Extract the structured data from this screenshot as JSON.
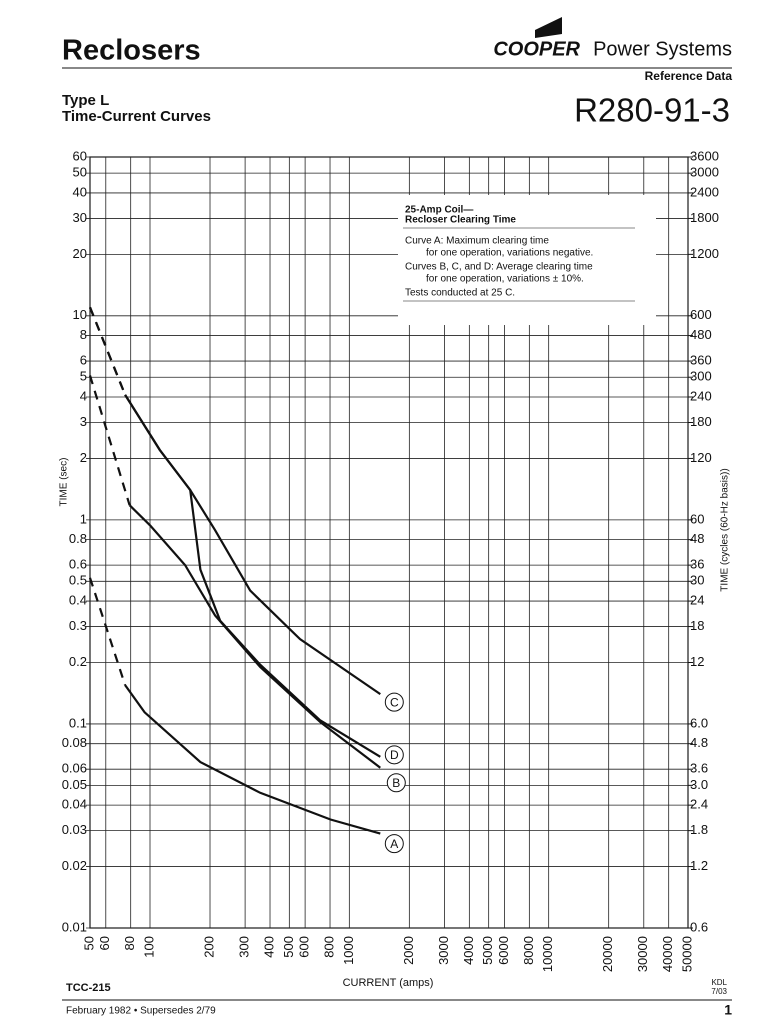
{
  "header": {
    "title": "Reclosers",
    "brand": "COOPER",
    "brand_rest": "Power Systems",
    "section": "Reference Data",
    "subtitle_1": "Type L",
    "subtitle_2": "Time-Current Curves",
    "doc_number": "R280-91-3"
  },
  "footer": {
    "code": "TCC-215",
    "initials": "KDL",
    "initials_date": "7/03",
    "date": "February 1982 • Supersedes 2/79",
    "page": "1"
  },
  "chart_data": {
    "type": "line",
    "log_x": true,
    "log_y": true,
    "grid": true,
    "xlabel": "CURRENT (amps)",
    "ylabel": "TIME (sec)",
    "y2label": "TIME (cycles (60-Hz basis))",
    "annotations": [
      "25-Amp Coil—",
      "Recloser Clearing Time",
      "Curve A: Maximum clearing time",
      "for one operation, variations negative.",
      "Curves B, C, and D: Average clearing time",
      "for one operation, variations ± 10%.",
      "Tests conducted at 25 C."
    ],
    "xlim": [
      50,
      50000
    ],
    "ylim": [
      0.01,
      60
    ],
    "y2lim": [
      0.6,
      3600
    ],
    "xticks": [
      50,
      60,
      80,
      100,
      200,
      300,
      400,
      500,
      600,
      800,
      1000,
      2000,
      3000,
      4000,
      5000,
      6000,
      8000,
      10000,
      20000,
      30000,
      40000,
      50000
    ],
    "yticks": [
      60,
      50,
      40,
      30,
      20,
      10,
      8,
      6,
      5,
      4,
      3,
      2,
      1,
      0.8,
      0.6,
      0.5,
      0.4,
      0.3,
      0.2,
      0.1,
      0.08,
      0.06,
      0.05,
      0.04,
      0.03,
      0.02,
      0.01
    ],
    "y2ticks": [
      3600,
      3000,
      2400,
      1800,
      1200,
      600,
      480,
      360,
      300,
      240,
      180,
      120,
      60,
      48,
      36,
      30,
      24,
      18,
      12,
      {
        "value": 6,
        "label": "6.0"
      },
      4.8,
      3.6,
      {
        "value": 3,
        "label": "3.0"
      },
      2.4,
      1.8,
      1.2,
      0.6
    ],
    "series": [
      {
        "name": "C",
        "color": "#111111",
        "x": [
          50,
          75,
          112,
          159,
          212,
          318,
          566,
          1430
        ],
        "dashed_values": [
          11,
          4.1,
          null,
          null,
          null,
          null,
          null,
          null
        ],
        "values": [
          null,
          4.1,
          2.2,
          1.4,
          0.89,
          0.45,
          0.26,
          0.14
        ]
      },
      {
        "name": "D",
        "color": "#111111",
        "x": [
          50,
          75,
          112,
          159,
          179,
          225,
          357,
          716,
          1430
        ],
        "dashed_values": [
          11,
          4.1,
          null,
          null,
          null,
          null,
          null,
          null,
          null
        ],
        "values": [
          null,
          4.1,
          2.2,
          1.4,
          0.57,
          0.32,
          0.195,
          0.104,
          0.069
        ]
      },
      {
        "name": "B",
        "color": "#111111",
        "x": [
          50,
          79,
          100,
          150,
          212,
          357,
          716,
          1430
        ],
        "dashed_values": [
          5.1,
          1.18,
          null,
          null,
          null,
          null,
          null,
          null
        ],
        "values": [
          null,
          1.18,
          0.94,
          0.6,
          0.34,
          0.19,
          0.102,
          0.061
        ]
      },
      {
        "name": "A",
        "color": "#111111",
        "x": [
          50,
          75,
          94,
          179,
          357,
          804,
          1430
        ],
        "dashed_values": [
          0.52,
          0.155,
          null,
          null,
          null,
          null,
          null
        ],
        "values": [
          null,
          0.155,
          0.114,
          0.065,
          0.046,
          0.034,
          0.029
        ]
      }
    ]
  }
}
